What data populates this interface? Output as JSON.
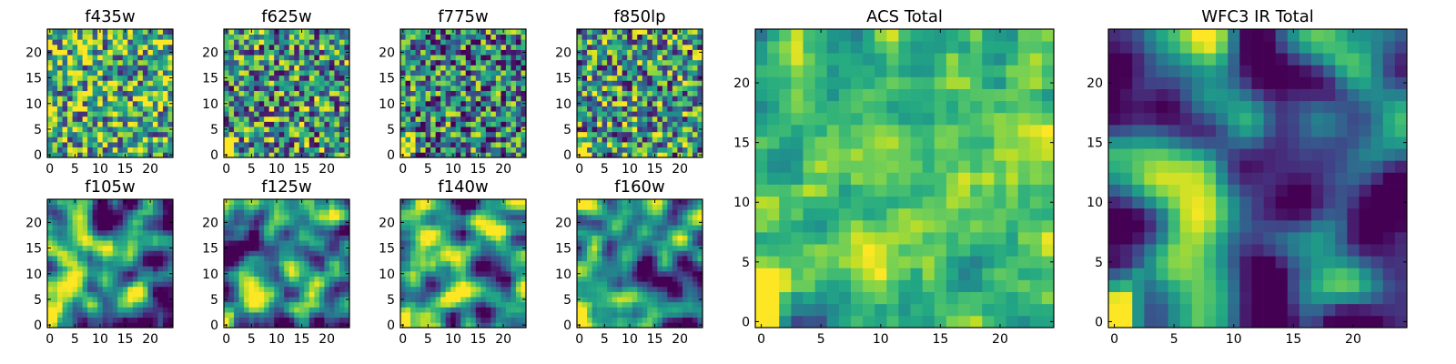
{
  "chart_data": [
    {
      "type": "heatmap",
      "title": "f435w",
      "size": 25,
      "seed": 11,
      "smooth": 0,
      "contrast": 1.0,
      "bias": 0.62,
      "corner": 0.2,
      "xticks": [
        0,
        5,
        10,
        15,
        20
      ],
      "yticks": [
        0,
        5,
        10,
        15,
        20
      ]
    },
    {
      "type": "heatmap",
      "title": "f625w",
      "size": 25,
      "seed": 23,
      "smooth": 0,
      "contrast": 1.0,
      "bias": 0.52,
      "corner": 0.9,
      "xticks": [
        0,
        5,
        10,
        15,
        20
      ],
      "yticks": [
        0,
        5,
        10,
        15,
        20
      ]
    },
    {
      "type": "heatmap",
      "title": "f775w",
      "size": 25,
      "seed": 37,
      "smooth": 0,
      "contrast": 1.0,
      "bias": 0.45,
      "corner": 0.9,
      "xticks": [
        0,
        5,
        10,
        15,
        20
      ],
      "yticks": [
        0,
        5,
        10,
        15,
        20
      ]
    },
    {
      "type": "heatmap",
      "title": "f850lp",
      "size": 25,
      "seed": 41,
      "smooth": 0,
      "contrast": 1.0,
      "bias": 0.52,
      "corner": 1.0,
      "xticks": [
        0,
        5,
        10,
        15,
        20
      ],
      "yticks": [
        0,
        5,
        10,
        15,
        20
      ]
    },
    {
      "type": "heatmap",
      "title": "f105w",
      "size": 25,
      "seed": 53,
      "smooth": 2,
      "contrast": 1.5,
      "bias": 0.48,
      "corner": 0.9,
      "xticks": [
        0,
        5,
        10,
        15,
        20
      ],
      "yticks": [
        0,
        5,
        10,
        15,
        20
      ]
    },
    {
      "type": "heatmap",
      "title": "f125w",
      "size": 25,
      "seed": 67,
      "smooth": 2,
      "contrast": 1.5,
      "bias": 0.4,
      "corner": 0.9,
      "xticks": [
        0,
        5,
        10,
        15,
        20
      ],
      "yticks": [
        0,
        5,
        10,
        15,
        20
      ]
    },
    {
      "type": "heatmap",
      "title": "f140w",
      "size": 25,
      "seed": 71,
      "smooth": 2,
      "contrast": 1.5,
      "bias": 0.48,
      "corner": 0.9,
      "xticks": [
        0,
        5,
        10,
        15,
        20
      ],
      "yticks": [
        0,
        5,
        10,
        15,
        20
      ]
    },
    {
      "type": "heatmap",
      "title": "f160w",
      "size": 25,
      "seed": 83,
      "smooth": 2,
      "contrast": 1.5,
      "bias": 0.46,
      "corner": 1.0,
      "xticks": [
        0,
        5,
        10,
        15,
        20
      ],
      "yticks": [
        0,
        5,
        10,
        15,
        20
      ]
    },
    {
      "type": "heatmap",
      "title": "ACS Total",
      "size": 25,
      "seed": 97,
      "smooth": 1,
      "contrast": 0.8,
      "bias": 0.62,
      "corner": 1.0,
      "xticks": [
        0,
        5,
        10,
        15,
        20
      ],
      "yticks": [
        0,
        5,
        10,
        15,
        20
      ]
    },
    {
      "type": "heatmap",
      "title": "WFC3 IR Total",
      "size": 25,
      "seed": 101,
      "smooth": 3,
      "contrast": 1.4,
      "bias": 0.38,
      "corner": 1.0,
      "xticks": [
        0,
        5,
        10,
        15,
        20
      ],
      "yticks": [
        0,
        5,
        10,
        15,
        20
      ]
    }
  ]
}
